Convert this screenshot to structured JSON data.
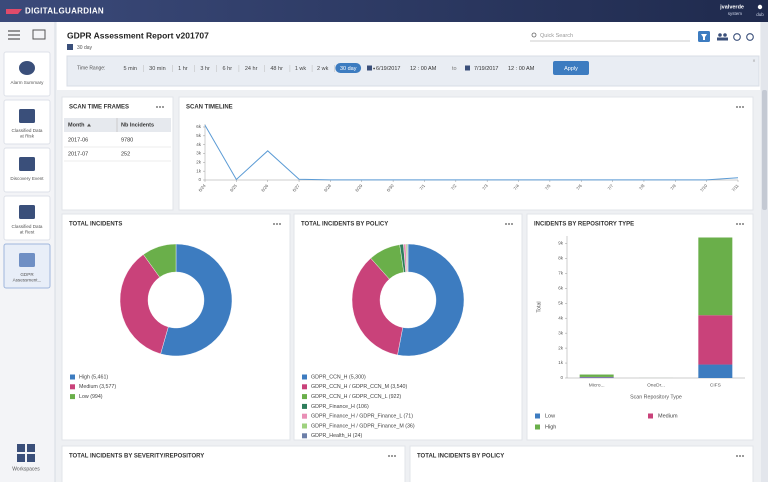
{
  "header": {
    "brand": "DIGITALGUARDIAN",
    "user": "jvalverde",
    "role": "system",
    "org": "dub"
  },
  "sidebar": {
    "items": [
      [
        "Alarm Summary"
      ],
      [
        "Classified Data",
        "at Risk"
      ],
      [
        "Discovery Event"
      ],
      [
        "Classified Data",
        "at Rest"
      ],
      [
        "GDPR",
        "Assessment..."
      ]
    ],
    "workspaces": "Workspaces"
  },
  "report": {
    "title": "GDPR Assessment Report v201707",
    "period": "30 day",
    "search": "Quick Search"
  },
  "time_range": {
    "label": "Time Range:",
    "options": [
      "5 min",
      "30 min",
      "1 hr",
      "3 hr",
      "6 hr",
      "24 hr",
      "48 hr",
      "1 wk",
      "2 wk",
      "30 day"
    ],
    "selected": 9,
    "from_date": "6/19/2017",
    "from_time": "12 : 00 AM",
    "to": "to",
    "to_date": "7/19/2017",
    "to_time": "12 : 00 AM",
    "apply": "Apply"
  },
  "scan_time_frames": {
    "title": "SCAN TIME FRAMES",
    "columns": [
      "Month",
      "Nb Incidents"
    ],
    "rows": [
      [
        "2017-06",
        "9780"
      ],
      [
        "2017-07",
        "252"
      ]
    ]
  },
  "chart_data": [
    {
      "type": "line",
      "title": "SCAN TIMELINE",
      "x": [
        "6/24",
        "6/25",
        "6/26",
        "6/27",
        "6/28",
        "6/29",
        "6/30",
        "7/1",
        "7/2",
        "7/3",
        "7/4",
        "7/5",
        "7/6",
        "7/7",
        "7/8",
        "7/9",
        "7/10",
        "7/11"
      ],
      "series": [
        {
          "color": "#5b9bd5",
          "values": [
            6200,
            60,
            3300,
            80,
            20,
            10,
            15,
            10,
            20,
            10,
            15,
            10,
            10,
            15,
            10,
            20,
            20,
            250
          ]
        }
      ],
      "ylim": [
        0,
        6000
      ],
      "yticks": [
        0,
        {
          "value": 1000,
          "label": "1k"
        },
        {
          "value": 2000,
          "label": "2k"
        },
        {
          "value": 3000,
          "label": "3k"
        },
        {
          "value": 4000,
          "label": "4k"
        },
        {
          "value": 5000,
          "label": "5k"
        },
        {
          "value": 6000,
          "label": "6k"
        }
      ]
    },
    {
      "type": "donut",
      "title": "TOTAL INCIDENTS",
      "labels": [
        "High (5,461)",
        "Medium (3,577)",
        "Low (994)"
      ],
      "values": [
        5461,
        3577,
        994
      ],
      "colors": [
        "#3d7cc0",
        "#c9427a",
        "#6aaf4a"
      ]
    },
    {
      "type": "donut",
      "title": "TOTAL INCIDENTS BY POLICY",
      "labels": [
        "GDPR_CCN_H (5,300)",
        "GDPR_CCN_H / GDPR_CCN_M (3,540)",
        "GDPR_CCN_H / GDPR_CCN_L (922)",
        "GDPR_Finance_H (106)",
        "GDPR_Finance_H / GDPR_Finance_L (71)",
        "GDPR_Finance_H / GDPR_Finance_M (36)",
        "GDPR_Health_H (24)"
      ],
      "values": [
        5300,
        3540,
        922,
        106,
        71,
        36,
        24
      ],
      "colors": [
        "#3d7cc0",
        "#c9427a",
        "#6aaf4a",
        "#2e7d5b",
        "#e98fb6",
        "#9fd27f",
        "#6c7fa8"
      ]
    },
    {
      "type": "stacked_bar",
      "title": "INCIDENTS BY REPOSITORY TYPE",
      "categories": [
        "Micro...",
        "OneDr...",
        "CIFS"
      ],
      "series": [
        {
          "name": "Low",
          "color": "#3d7cc0",
          "values": [
            44,
            0,
            900
          ]
        },
        {
          "name": "Medium",
          "color": "#c9427a",
          "values": [
            27,
            0,
            3300
          ]
        },
        {
          "name": "High",
          "color": "#6aaf4a",
          "values": [
            161,
            2,
            5200
          ]
        }
      ],
      "ylim": [
        0,
        9500
      ],
      "yticks": [
        0,
        {
          "value": 1000,
          "label": "1k"
        },
        {
          "value": 2000,
          "label": "2k"
        },
        {
          "value": 3000,
          "label": "3k"
        },
        {
          "value": 4000,
          "label": "4k"
        },
        {
          "value": 5000,
          "label": "5k"
        },
        {
          "value": 6000,
          "label": "6k"
        },
        {
          "value": 7000,
          "label": "7k"
        },
        {
          "value": 8000,
          "label": "8k"
        },
        {
          "value": 9000,
          "label": "9k"
        }
      ],
      "ylabel": "Total",
      "xlabel": "Scan Repository Type"
    }
  ],
  "bottom_panels": [
    "TOTAL INCIDENTS BY SEVERITY/REPOSITORY",
    "TOTAL INCIDENTS BY POLICY"
  ]
}
